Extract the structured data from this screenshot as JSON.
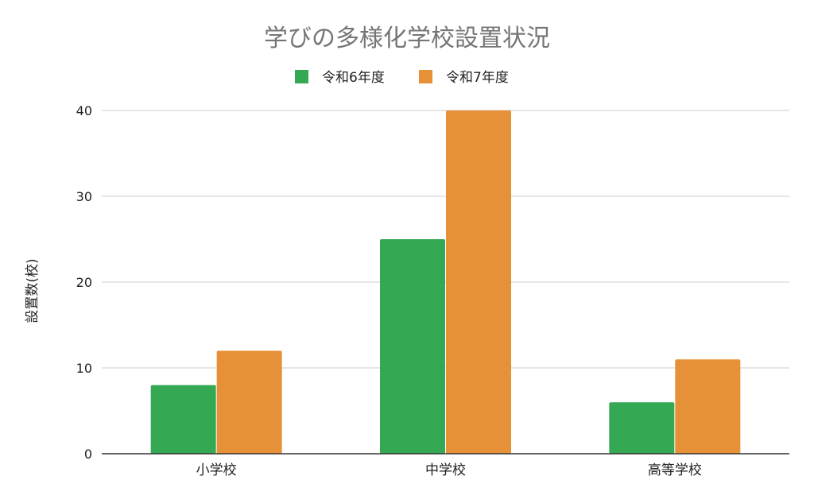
{
  "chart_data": {
    "type": "bar",
    "title": "学びの多様化学校設置状況",
    "xlabel": "",
    "ylabel": "設置数(校)",
    "categories": [
      "小学校",
      "中学校",
      "高等学校"
    ],
    "series": [
      {
        "name": "令和6年度",
        "values": [
          8,
          25,
          6
        ],
        "color": "#34a853"
      },
      {
        "name": "令和7年度",
        "values": [
          12,
          40,
          11
        ],
        "color": "#e69138"
      }
    ],
    "ylim": [
      0,
      40
    ],
    "yticks": [
      0,
      10,
      20,
      30,
      40
    ],
    "grid": true,
    "legend_position": "top-center"
  }
}
